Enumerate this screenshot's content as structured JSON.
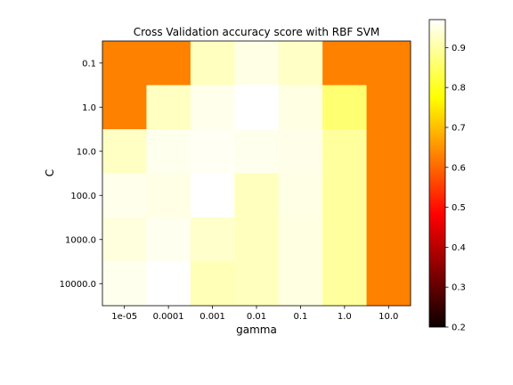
{
  "chart_data": {
    "type": "heatmap",
    "title": "Cross Validation accuracy score with RBF SVM",
    "xlabel": "gamma",
    "ylabel": "C",
    "x_categories": [
      "1e-05",
      "0.0001",
      "0.001",
      "0.01",
      "0.1",
      "1.0",
      "10.0"
    ],
    "y_categories": [
      "0.1",
      "1.0",
      "10.0",
      "100.0",
      "1000.0",
      "10000.0"
    ],
    "values": [
      [
        0.63,
        0.63,
        0.921,
        0.951,
        0.926,
        0.63,
        0.63
      ],
      [
        0.63,
        0.923,
        0.955,
        0.97,
        0.949,
        0.862,
        0.63
      ],
      [
        0.925,
        0.957,
        0.961,
        0.957,
        0.953,
        0.895,
        0.63
      ],
      [
        0.955,
        0.951,
        0.97,
        0.92,
        0.95,
        0.895,
        0.63
      ],
      [
        0.945,
        0.958,
        0.93,
        0.92,
        0.948,
        0.895,
        0.63
      ],
      [
        0.957,
        0.97,
        0.915,
        0.92,
        0.948,
        0.895,
        0.63
      ]
    ],
    "colormap": "hot",
    "vmin": 0.2,
    "vmax": 0.97,
    "colorbar_ticks": [
      "0.2",
      "0.3",
      "0.4",
      "0.5",
      "0.6",
      "0.7",
      "0.8",
      "0.9"
    ],
    "colorbar_tick_values": [
      0.2,
      0.3,
      0.4,
      0.5,
      0.6,
      0.7,
      0.8,
      0.9
    ]
  }
}
